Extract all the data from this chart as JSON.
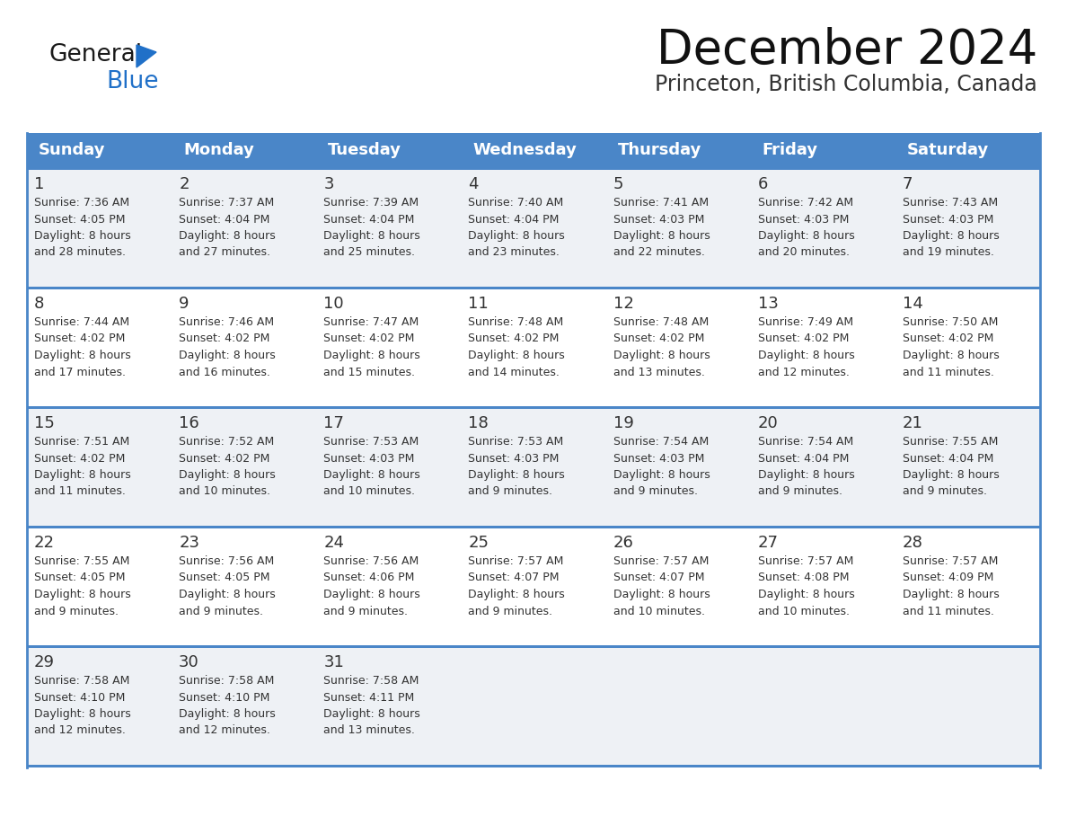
{
  "title": "December 2024",
  "subtitle": "Princeton, British Columbia, Canada",
  "header_bg": "#4a86c8",
  "header_text_color": "#ffffff",
  "cell_bg_row0": "#eef1f5",
  "cell_bg_row1": "#ffffff",
  "cell_bg_row2": "#eef1f5",
  "cell_bg_row3": "#ffffff",
  "cell_bg_row4": "#eef1f5",
  "separator_color": "#4a86c8",
  "text_color": "#333333",
  "days_of_week": [
    "Sunday",
    "Monday",
    "Tuesday",
    "Wednesday",
    "Thursday",
    "Friday",
    "Saturday"
  ],
  "calendar_data": [
    [
      {
        "day": "1",
        "sunrise": "7:36 AM",
        "sunset": "4:05 PM",
        "daylight_mins": "28"
      },
      {
        "day": "2",
        "sunrise": "7:37 AM",
        "sunset": "4:04 PM",
        "daylight_mins": "27"
      },
      {
        "day": "3",
        "sunrise": "7:39 AM",
        "sunset": "4:04 PM",
        "daylight_mins": "25"
      },
      {
        "day": "4",
        "sunrise": "7:40 AM",
        "sunset": "4:04 PM",
        "daylight_mins": "23"
      },
      {
        "day": "5",
        "sunrise": "7:41 AM",
        "sunset": "4:03 PM",
        "daylight_mins": "22"
      },
      {
        "day": "6",
        "sunrise": "7:42 AM",
        "sunset": "4:03 PM",
        "daylight_mins": "20"
      },
      {
        "day": "7",
        "sunrise": "7:43 AM",
        "sunset": "4:03 PM",
        "daylight_mins": "19"
      }
    ],
    [
      {
        "day": "8",
        "sunrise": "7:44 AM",
        "sunset": "4:02 PM",
        "daylight_mins": "17"
      },
      {
        "day": "9",
        "sunrise": "7:46 AM",
        "sunset": "4:02 PM",
        "daylight_mins": "16"
      },
      {
        "day": "10",
        "sunrise": "7:47 AM",
        "sunset": "4:02 PM",
        "daylight_mins": "15"
      },
      {
        "day": "11",
        "sunrise": "7:48 AM",
        "sunset": "4:02 PM",
        "daylight_mins": "14"
      },
      {
        "day": "12",
        "sunrise": "7:48 AM",
        "sunset": "4:02 PM",
        "daylight_mins": "13"
      },
      {
        "day": "13",
        "sunrise": "7:49 AM",
        "sunset": "4:02 PM",
        "daylight_mins": "12"
      },
      {
        "day": "14",
        "sunrise": "7:50 AM",
        "sunset": "4:02 PM",
        "daylight_mins": "11"
      }
    ],
    [
      {
        "day": "15",
        "sunrise": "7:51 AM",
        "sunset": "4:02 PM",
        "daylight_mins": "11"
      },
      {
        "day": "16",
        "sunrise": "7:52 AM",
        "sunset": "4:02 PM",
        "daylight_mins": "10"
      },
      {
        "day": "17",
        "sunrise": "7:53 AM",
        "sunset": "4:03 PM",
        "daylight_mins": "10"
      },
      {
        "day": "18",
        "sunrise": "7:53 AM",
        "sunset": "4:03 PM",
        "daylight_mins": "9"
      },
      {
        "day": "19",
        "sunrise": "7:54 AM",
        "sunset": "4:03 PM",
        "daylight_mins": "9"
      },
      {
        "day": "20",
        "sunrise": "7:54 AM",
        "sunset": "4:04 PM",
        "daylight_mins": "9"
      },
      {
        "day": "21",
        "sunrise": "7:55 AM",
        "sunset": "4:04 PM",
        "daylight_mins": "9"
      }
    ],
    [
      {
        "day": "22",
        "sunrise": "7:55 AM",
        "sunset": "4:05 PM",
        "daylight_mins": "9"
      },
      {
        "day": "23",
        "sunrise": "7:56 AM",
        "sunset": "4:05 PM",
        "daylight_mins": "9"
      },
      {
        "day": "24",
        "sunrise": "7:56 AM",
        "sunset": "4:06 PM",
        "daylight_mins": "9"
      },
      {
        "day": "25",
        "sunrise": "7:57 AM",
        "sunset": "4:07 PM",
        "daylight_mins": "9"
      },
      {
        "day": "26",
        "sunrise": "7:57 AM",
        "sunset": "4:07 PM",
        "daylight_mins": "10"
      },
      {
        "day": "27",
        "sunrise": "7:57 AM",
        "sunset": "4:08 PM",
        "daylight_mins": "10"
      },
      {
        "day": "28",
        "sunrise": "7:57 AM",
        "sunset": "4:09 PM",
        "daylight_mins": "11"
      }
    ],
    [
      {
        "day": "29",
        "sunrise": "7:58 AM",
        "sunset": "4:10 PM",
        "daylight_mins": "12"
      },
      {
        "day": "30",
        "sunrise": "7:58 AM",
        "sunset": "4:10 PM",
        "daylight_mins": "12"
      },
      {
        "day": "31",
        "sunrise": "7:58 AM",
        "sunset": "4:11 PM",
        "daylight_mins": "13"
      },
      null,
      null,
      null,
      null
    ]
  ],
  "logo_general_color": "#1a1a1a",
  "logo_blue_color": "#2070c8",
  "logo_triangle_color": "#2070c8",
  "title_fontsize": 38,
  "subtitle_fontsize": 17,
  "header_fontsize": 13,
  "day_num_fontsize": 13,
  "cell_text_fontsize": 9
}
